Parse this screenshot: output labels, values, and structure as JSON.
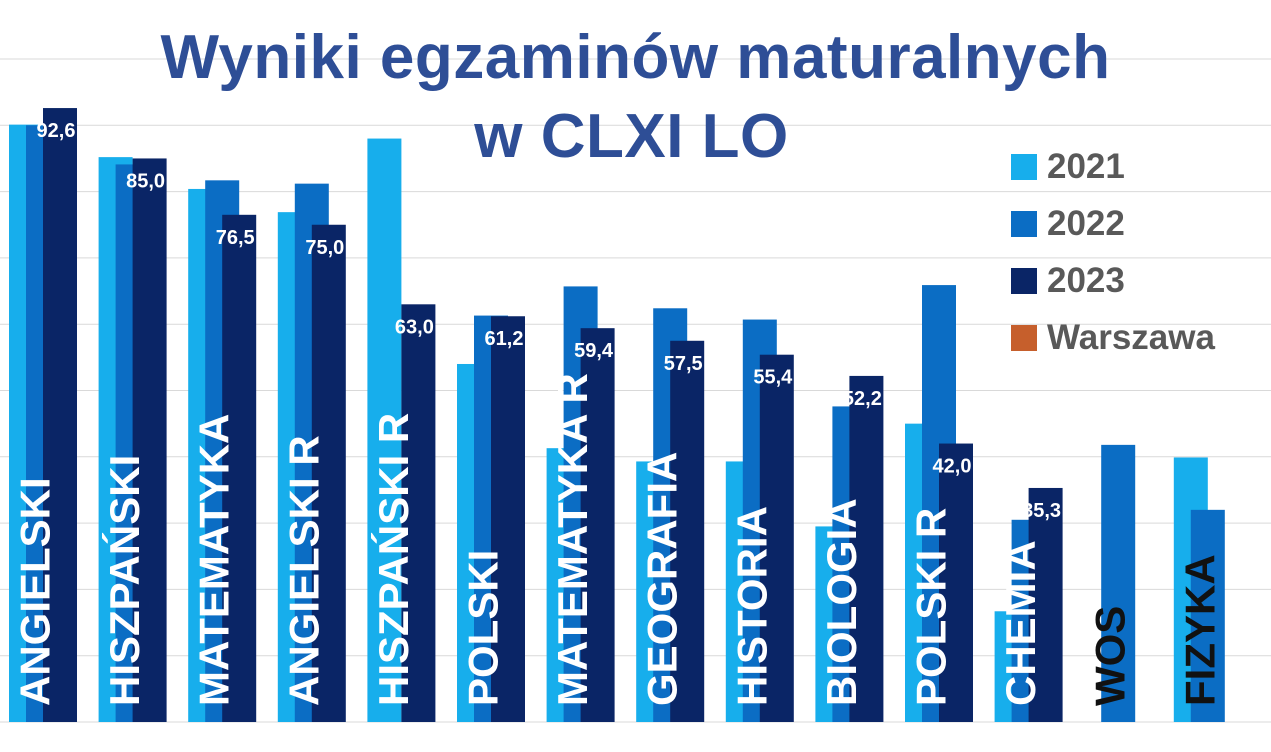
{
  "chart_data": {
    "type": "bar",
    "title": [
      "Wyniki egzaminów maturalnych",
      "w CLXI LO"
    ],
    "title_color": "#2E4E96",
    "categories": [
      "ANGIELSKI",
      "HISZPAŃSKI",
      "MATEMATYKA",
      "ANGIELSKI R",
      "HISZPAŃSKI R",
      "POLSKI",
      "MATEMATYKA R",
      "GEOGRAFIA",
      "HISTORIA",
      "BIOLOGIA",
      "POLSKI R",
      "CHEMIA",
      "WOS",
      "FIZYKA"
    ],
    "category_label_colors": [
      "#ffffff",
      "#ffffff",
      "#ffffff",
      "#ffffff",
      "#ffffff",
      "#ffffff",
      "#ffffff",
      "#ffffff",
      "#ffffff",
      "#ffffff",
      "#ffffff",
      "#ffffff",
      "#111111",
      "#111111"
    ],
    "series": [
      {
        "name": "2021",
        "color": "#17AEEC",
        "values": [
          90.1,
          85.2,
          80.4,
          76.9,
          88.0,
          54.0,
          41.3,
          39.3,
          39.3,
          29.5,
          45.0,
          16.7,
          null,
          39.9
        ]
      },
      {
        "name": "2022",
        "color": "#0B6DC4",
        "values": [
          90.0,
          84.1,
          81.7,
          81.2,
          null,
          61.3,
          65.7,
          62.4,
          60.7,
          47.6,
          65.9,
          30.5,
          41.8,
          32.0
        ]
      },
      {
        "name": "2023",
        "color": "#0A2566",
        "values": [
          92.6,
          85.0,
          76.5,
          75.0,
          63.0,
          61.2,
          59.4,
          57.5,
          55.4,
          52.2,
          42.0,
          35.3,
          null,
          null
        ]
      },
      {
        "name": "Warszawa",
        "color": "#C65F2C",
        "values": [
          null,
          null,
          null,
          null,
          null,
          null,
          null,
          null,
          null,
          null,
          null,
          null,
          null,
          null
        ]
      }
    ],
    "data_labels": [
      "92,6",
      "85,0",
      "76,5",
      "75,0",
      "63,0",
      "61,2",
      "59,4",
      "57,5",
      "55,4",
      "52,2",
      "42,0",
      "35,3",
      "",
      ""
    ],
    "ylim": [
      0,
      100
    ],
    "grid": true,
    "legend": "right"
  }
}
